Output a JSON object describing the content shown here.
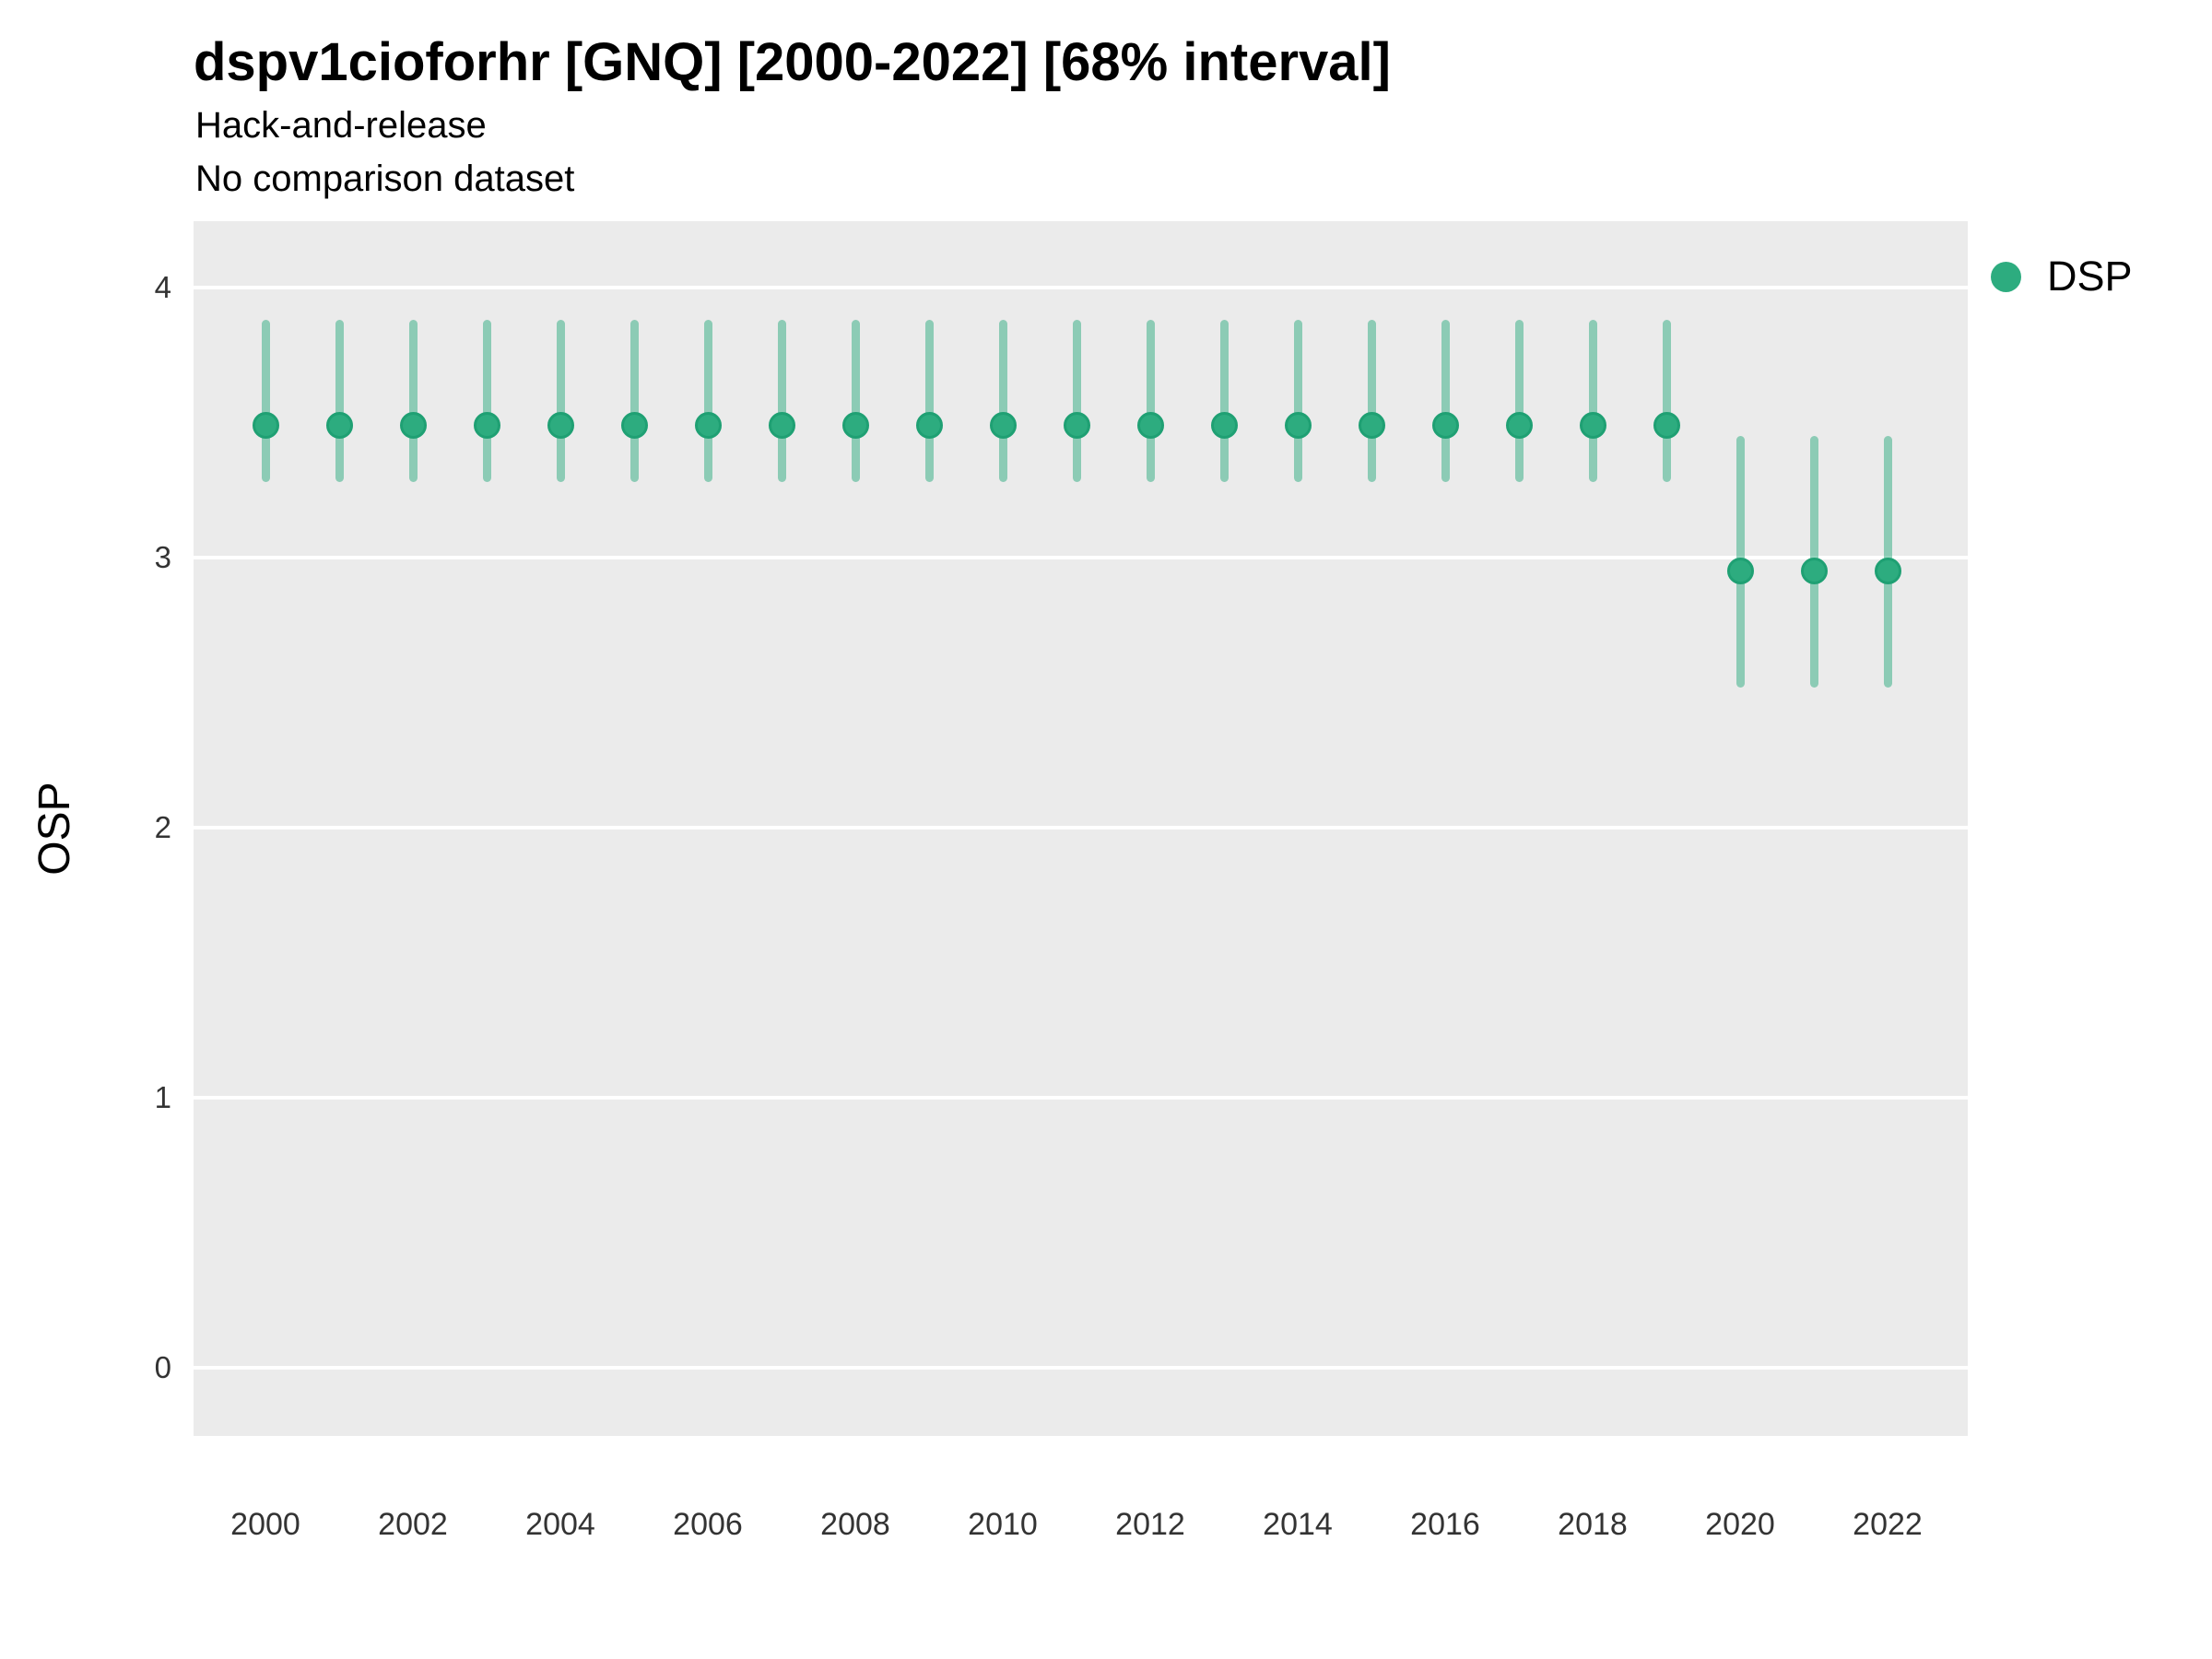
{
  "header": {
    "title": "dspv1cioforhr [GNQ] [2000-2022] [68% interval]",
    "subtitle_line1": "Hack-and-release",
    "subtitle_line2": "No comparison dataset"
  },
  "legend": {
    "label": "DSP"
  },
  "colors": {
    "point_fill": "#2dac7f",
    "point_border": "#1fa073",
    "interval_bar": "rgba(45,172,127,0.5)",
    "panel_background": "#ebebeb",
    "gridline": "#ffffff",
    "title_text": "#000000",
    "tick_text": "#333333"
  },
  "chart_data": {
    "type": "scatter",
    "subtype": "pointrange-errorbar",
    "title": "dspv1cioforhr [GNQ] [2000-2022] [68% interval]",
    "subtitle": [
      "Hack-and-release",
      "No comparison dataset"
    ],
    "interval_level": "68%",
    "xlabel": "",
    "ylabel": "OSP",
    "x_axis": {
      "tick_years": [
        2000,
        2002,
        2004,
        2006,
        2008,
        2010,
        2012,
        2014,
        2016,
        2018,
        2020,
        2022
      ],
      "range": [
        1999,
        2023
      ]
    },
    "y_axis": {
      "ticks": [
        4,
        3,
        2,
        1,
        0
      ],
      "range_shown": [
        -0.25,
        4.25
      ]
    },
    "grid": "major-horizontal-white",
    "legend_position": "right",
    "series": [
      {
        "name": "DSP",
        "points": [
          {
            "year": 2000,
            "value": 3.49,
            "lower": 3.28,
            "upper": 3.88
          },
          {
            "year": 2001,
            "value": 3.49,
            "lower": 3.28,
            "upper": 3.88
          },
          {
            "year": 2002,
            "value": 3.49,
            "lower": 3.28,
            "upper": 3.88
          },
          {
            "year": 2003,
            "value": 3.49,
            "lower": 3.28,
            "upper": 3.88
          },
          {
            "year": 2004,
            "value": 3.49,
            "lower": 3.28,
            "upper": 3.88
          },
          {
            "year": 2005,
            "value": 3.49,
            "lower": 3.28,
            "upper": 3.88
          },
          {
            "year": 2006,
            "value": 3.49,
            "lower": 3.28,
            "upper": 3.88
          },
          {
            "year": 2007,
            "value": 3.49,
            "lower": 3.28,
            "upper": 3.88
          },
          {
            "year": 2008,
            "value": 3.49,
            "lower": 3.28,
            "upper": 3.88
          },
          {
            "year": 2009,
            "value": 3.49,
            "lower": 3.28,
            "upper": 3.88
          },
          {
            "year": 2010,
            "value": 3.49,
            "lower": 3.28,
            "upper": 3.88
          },
          {
            "year": 2011,
            "value": 3.49,
            "lower": 3.28,
            "upper": 3.88
          },
          {
            "year": 2012,
            "value": 3.49,
            "lower": 3.28,
            "upper": 3.88
          },
          {
            "year": 2013,
            "value": 3.49,
            "lower": 3.28,
            "upper": 3.88
          },
          {
            "year": 2014,
            "value": 3.49,
            "lower": 3.28,
            "upper": 3.88
          },
          {
            "year": 2015,
            "value": 3.49,
            "lower": 3.28,
            "upper": 3.88
          },
          {
            "year": 2016,
            "value": 3.49,
            "lower": 3.28,
            "upper": 3.88
          },
          {
            "year": 2017,
            "value": 3.49,
            "lower": 3.28,
            "upper": 3.88
          },
          {
            "year": 2018,
            "value": 3.49,
            "lower": 3.28,
            "upper": 3.88
          },
          {
            "year": 2019,
            "value": 3.49,
            "lower": 3.28,
            "upper": 3.88
          },
          {
            "year": 2020,
            "value": 2.95,
            "lower": 2.52,
            "upper": 3.45
          },
          {
            "year": 2021,
            "value": 2.95,
            "lower": 2.52,
            "upper": 3.45
          },
          {
            "year": 2022,
            "value": 2.95,
            "lower": 2.52,
            "upper": 3.45
          }
        ]
      }
    ]
  }
}
